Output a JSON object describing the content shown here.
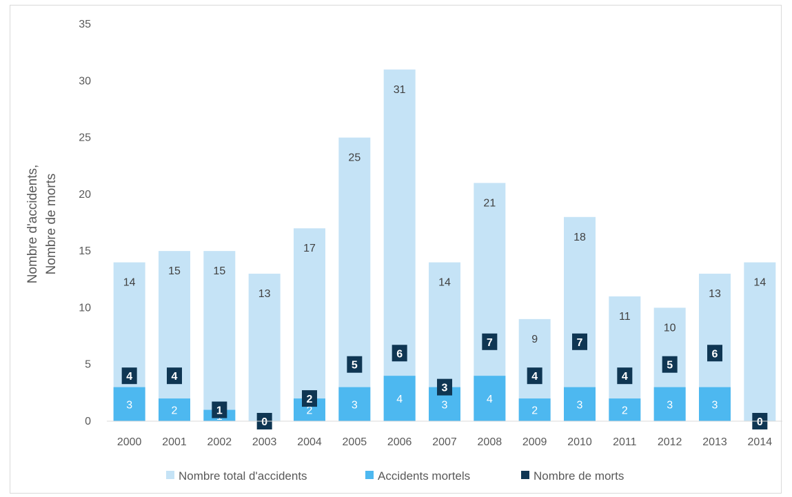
{
  "chart_data": {
    "type": "bar",
    "categories": [
      "2000",
      "2001",
      "2002",
      "2003",
      "2004",
      "2005",
      "2006",
      "2007",
      "2008",
      "2009",
      "2010",
      "2011",
      "2012",
      "2013",
      "2014"
    ],
    "series": [
      {
        "name": "Nombre total d'accidents",
        "values": [
          14,
          15,
          15,
          13,
          17,
          25,
          31,
          14,
          21,
          9,
          18,
          11,
          10,
          13,
          14
        ],
        "color": "#c5e3f6"
      },
      {
        "name": "Accidents mortels",
        "values": [
          3,
          2,
          1,
          0,
          2,
          3,
          4,
          3,
          4,
          2,
          3,
          2,
          3,
          3,
          0
        ],
        "color": "#4db8f0"
      },
      {
        "name": "Nombre de morts",
        "values": [
          4,
          4,
          1,
          0,
          2,
          5,
          6,
          3,
          7,
          4,
          7,
          4,
          5,
          6,
          0
        ],
        "color": "#0f3653",
        "style": "label-marker"
      }
    ],
    "ylabel_line1": "Nombre d'accidents,",
    "ylabel_line2": "Nombre de morts",
    "ylim": [
      0,
      35
    ],
    "yticks": [
      0,
      5,
      10,
      15,
      20,
      25,
      30,
      35
    ],
    "grid": false,
    "legend_position": "bottom"
  }
}
